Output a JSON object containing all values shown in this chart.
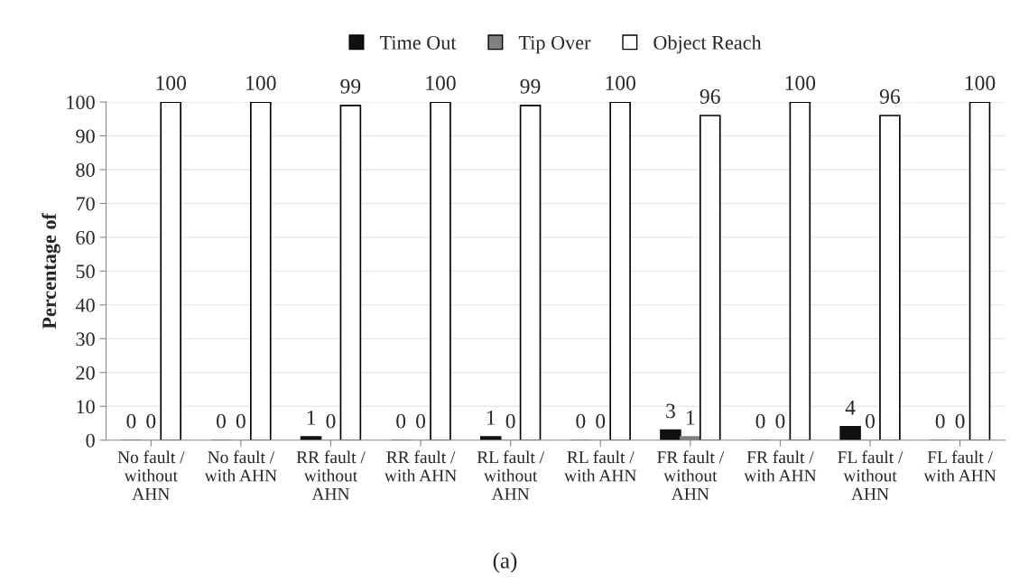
{
  "chart_data": {
    "type": "bar",
    "categories": [
      "No fault /\nwithout\nAHN",
      "No fault /\nwith AHN",
      "RR fault /\nwithout\nAHN",
      "RR fault /\nwith AHN",
      "RL fault /\nwithout\nAHN",
      "RL fault /\nwith AHN",
      "FR fault /\nwithout\nAHN",
      "FR fault /\nwith AHN",
      "FL fault /\nwithout\nAHN",
      "FL fault /\nwith AHN"
    ],
    "series": [
      {
        "name": "Time Out",
        "color": "#111111",
        "values": [
          0,
          0,
          1,
          0,
          1,
          0,
          3,
          0,
          4,
          0
        ]
      },
      {
        "name": "Tip Over",
        "color": "#808080",
        "values": [
          0,
          0,
          0,
          0,
          0,
          0,
          1,
          0,
          0,
          0
        ]
      },
      {
        "name": "Object Reach",
        "color": "#ffffff",
        "values": [
          100,
          100,
          99,
          100,
          99,
          100,
          96,
          100,
          96,
          100
        ]
      }
    ],
    "ylabel": "Percentage of",
    "ylim": [
      0,
      100
    ],
    "yticks": [
      0,
      10,
      20,
      30,
      40,
      50,
      60,
      70,
      80,
      90,
      100
    ],
    "grid": "y",
    "legend": "top",
    "data_labels": true,
    "annotations": [
      "(a)"
    ]
  }
}
